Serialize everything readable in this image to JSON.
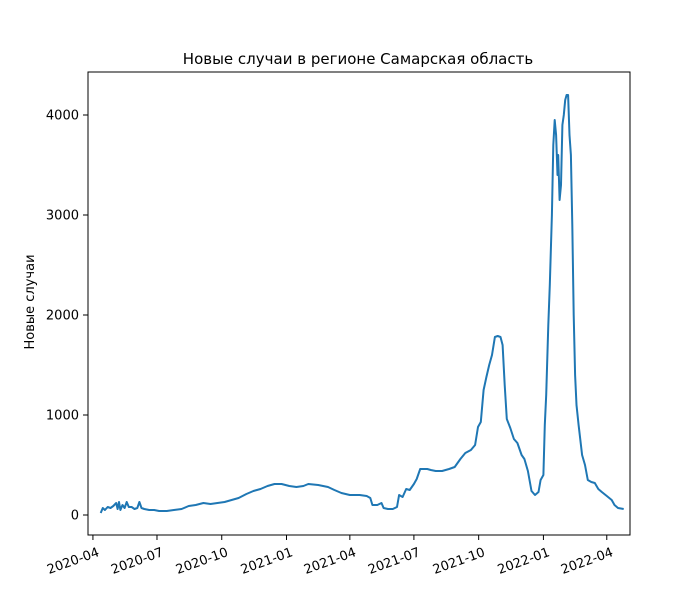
{
  "chart_data": {
    "type": "line",
    "title": "Новые случаи в регионе Самарская область",
    "xlabel": "",
    "ylabel": "Новые случаи",
    "x_range": [
      "2020-03-25",
      "2022-05-04"
    ],
    "ylim": [
      -200,
      4430
    ],
    "x_ticks": [
      {
        "date": "2020-04-01",
        "label": "2020-04"
      },
      {
        "date": "2020-07-01",
        "label": "2020-07"
      },
      {
        "date": "2020-10-01",
        "label": "2020-10"
      },
      {
        "date": "2021-01-01",
        "label": "2021-01"
      },
      {
        "date": "2021-04-01",
        "label": "2021-04"
      },
      {
        "date": "2021-07-01",
        "label": "2021-07"
      },
      {
        "date": "2021-10-01",
        "label": "2021-10"
      },
      {
        "date": "2022-01-01",
        "label": "2022-01"
      },
      {
        "date": "2022-04-01",
        "label": "2022-04"
      }
    ],
    "y_ticks": [
      0,
      1000,
      2000,
      3000,
      4000
    ],
    "grid": false,
    "legend": "none",
    "series": [
      {
        "color": "#1f77b4",
        "points": [
          [
            "2020-04-12",
            20
          ],
          [
            "2020-04-15",
            70
          ],
          [
            "2020-04-18",
            50
          ],
          [
            "2020-04-22",
            80
          ],
          [
            "2020-04-26",
            70
          ],
          [
            "2020-04-30",
            90
          ],
          [
            "2020-05-04",
            120
          ],
          [
            "2020-05-06",
            60
          ],
          [
            "2020-05-08",
            130
          ],
          [
            "2020-05-10",
            50
          ],
          [
            "2020-05-13",
            100
          ],
          [
            "2020-05-16",
            70
          ],
          [
            "2020-05-19",
            130
          ],
          [
            "2020-05-22",
            80
          ],
          [
            "2020-05-26",
            80
          ],
          [
            "2020-05-30",
            60
          ],
          [
            "2020-06-03",
            70
          ],
          [
            "2020-06-06",
            130
          ],
          [
            "2020-06-09",
            70
          ],
          [
            "2020-06-13",
            60
          ],
          [
            "2020-06-20",
            50
          ],
          [
            "2020-06-27",
            50
          ],
          [
            "2020-07-04",
            40
          ],
          [
            "2020-07-15",
            40
          ],
          [
            "2020-07-25",
            50
          ],
          [
            "2020-08-05",
            60
          ],
          [
            "2020-08-15",
            90
          ],
          [
            "2020-08-25",
            100
          ],
          [
            "2020-09-05",
            120
          ],
          [
            "2020-09-15",
            110
          ],
          [
            "2020-09-25",
            120
          ],
          [
            "2020-10-05",
            130
          ],
          [
            "2020-10-15",
            150
          ],
          [
            "2020-10-25",
            170
          ],
          [
            "2020-11-05",
            210
          ],
          [
            "2020-11-15",
            240
          ],
          [
            "2020-11-25",
            260
          ],
          [
            "2020-12-05",
            290
          ],
          [
            "2020-12-15",
            310
          ],
          [
            "2020-12-25",
            310
          ],
          [
            "2021-01-05",
            290
          ],
          [
            "2021-01-15",
            280
          ],
          [
            "2021-01-25",
            290
          ],
          [
            "2021-02-01",
            310
          ],
          [
            "2021-02-15",
            300
          ],
          [
            "2021-03-01",
            280
          ],
          [
            "2021-03-10",
            250
          ],
          [
            "2021-03-20",
            220
          ],
          [
            "2021-04-01",
            200
          ],
          [
            "2021-04-15",
            200
          ],
          [
            "2021-04-25",
            190
          ],
          [
            "2021-04-30",
            170
          ],
          [
            "2021-05-03",
            100
          ],
          [
            "2021-05-10",
            100
          ],
          [
            "2021-05-16",
            120
          ],
          [
            "2021-05-19",
            70
          ],
          [
            "2021-05-25",
            60
          ],
          [
            "2021-06-01",
            60
          ],
          [
            "2021-06-07",
            80
          ],
          [
            "2021-06-10",
            200
          ],
          [
            "2021-06-15",
            180
          ],
          [
            "2021-06-20",
            260
          ],
          [
            "2021-06-25",
            250
          ],
          [
            "2021-07-01",
            310
          ],
          [
            "2021-07-05",
            360
          ],
          [
            "2021-07-10",
            460
          ],
          [
            "2021-07-20",
            460
          ],
          [
            "2021-07-25",
            450
          ],
          [
            "2021-08-01",
            440
          ],
          [
            "2021-08-10",
            440
          ],
          [
            "2021-08-20",
            460
          ],
          [
            "2021-08-28",
            480
          ],
          [
            "2021-09-05",
            560
          ],
          [
            "2021-09-12",
            620
          ],
          [
            "2021-09-20",
            650
          ],
          [
            "2021-09-26",
            700
          ],
          [
            "2021-09-30",
            880
          ],
          [
            "2021-10-04",
            930
          ],
          [
            "2021-10-08",
            1250
          ],
          [
            "2021-10-12",
            1380
          ],
          [
            "2021-10-16",
            1500
          ],
          [
            "2021-10-20",
            1600
          ],
          [
            "2021-10-24",
            1780
          ],
          [
            "2021-10-28",
            1790
          ],
          [
            "2021-11-01",
            1780
          ],
          [
            "2021-11-04",
            1700
          ],
          [
            "2021-11-07",
            1300
          ],
          [
            "2021-11-10",
            960
          ],
          [
            "2021-11-15",
            870
          ],
          [
            "2021-11-20",
            760
          ],
          [
            "2021-11-25",
            720
          ],
          [
            "2021-12-01",
            600
          ],
          [
            "2021-12-05",
            560
          ],
          [
            "2021-12-10",
            440
          ],
          [
            "2021-12-15",
            240
          ],
          [
            "2021-12-20",
            200
          ],
          [
            "2021-12-25",
            230
          ],
          [
            "2021-12-28",
            350
          ],
          [
            "2022-01-01",
            400
          ],
          [
            "2022-01-03",
            900
          ],
          [
            "2022-01-05",
            1200
          ],
          [
            "2022-01-08",
            1900
          ],
          [
            "2022-01-10",
            2300
          ],
          [
            "2022-01-13",
            3000
          ],
          [
            "2022-01-15",
            3700
          ],
          [
            "2022-01-17",
            3950
          ],
          [
            "2022-01-19",
            3800
          ],
          [
            "2022-01-21",
            3400
          ],
          [
            "2022-01-22",
            3600
          ],
          [
            "2022-01-24",
            3150
          ],
          [
            "2022-01-26",
            3300
          ],
          [
            "2022-01-28",
            3900
          ],
          [
            "2022-01-30",
            4000
          ],
          [
            "2022-02-01",
            4150
          ],
          [
            "2022-02-03",
            4200
          ],
          [
            "2022-02-05",
            4200
          ],
          [
            "2022-02-07",
            3800
          ],
          [
            "2022-02-09",
            3600
          ],
          [
            "2022-02-11",
            2900
          ],
          [
            "2022-02-13",
            2000
          ],
          [
            "2022-02-15",
            1400
          ],
          [
            "2022-02-17",
            1100
          ],
          [
            "2022-02-20",
            900
          ],
          [
            "2022-02-25",
            600
          ],
          [
            "2022-03-01",
            500
          ],
          [
            "2022-03-05",
            350
          ],
          [
            "2022-03-10",
            330
          ],
          [
            "2022-03-15",
            320
          ],
          [
            "2022-03-20",
            260
          ],
          [
            "2022-03-25",
            230
          ],
          [
            "2022-04-01",
            190
          ],
          [
            "2022-04-08",
            150
          ],
          [
            "2022-04-12",
            100
          ],
          [
            "2022-04-17",
            70
          ],
          [
            "2022-04-25",
            60
          ]
        ]
      }
    ]
  }
}
